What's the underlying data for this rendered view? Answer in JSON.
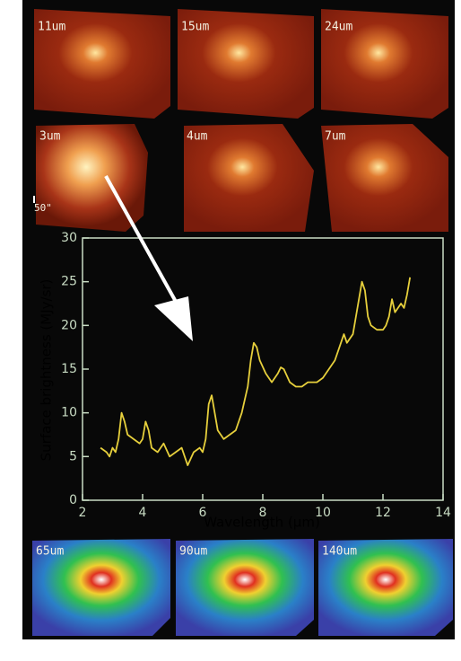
{
  "panels": {
    "top": [
      "11um",
      "15um",
      "24um",
      "3um",
      "4um",
      "7um"
    ],
    "bottom": [
      "65um",
      "90um",
      "140um"
    ],
    "scale_label": "50\""
  },
  "chart_data": {
    "type": "line",
    "y_label": "Surface brightness (MJy/sr)",
    "x_label": "Wavelength (μm)",
    "x": [
      2.6,
      2.8,
      2.9,
      3.0,
      3.1,
      3.2,
      3.3,
      3.4,
      3.5,
      3.7,
      3.9,
      4.0,
      4.1,
      4.2,
      4.3,
      4.5,
      4.7,
      4.9,
      5.1,
      5.3,
      5.5,
      5.7,
      5.9,
      6.0,
      6.1,
      6.2,
      6.3,
      6.4,
      6.5,
      6.7,
      6.9,
      7.1,
      7.3,
      7.5,
      7.6,
      7.7,
      7.8,
      7.9,
      8.1,
      8.3,
      8.5,
      8.6,
      8.7,
      8.9,
      9.1,
      9.3,
      9.5,
      9.8,
      10.0,
      10.2,
      10.4,
      10.6,
      10.7,
      10.8,
      11.0,
      11.1,
      11.2,
      11.3,
      11.4,
      11.5,
      11.6,
      11.8,
      12.0,
      12.1,
      12.2,
      12.3,
      12.4,
      12.5,
      12.6,
      12.7,
      12.8,
      12.9
    ],
    "values": [
      6,
      5.5,
      5,
      6,
      5.5,
      7,
      10,
      9,
      7.5,
      7,
      6.5,
      7,
      9,
      8,
      6,
      5.5,
      6.5,
      5,
      5.5,
      6,
      4,
      5.5,
      6,
      5.5,
      7,
      11,
      12,
      10,
      8,
      7,
      7.5,
      8,
      10,
      13,
      16,
      18,
      17.5,
      16,
      14.5,
      13.5,
      14.5,
      15.2,
      15,
      13.5,
      13,
      13,
      13.5,
      13.5,
      14,
      15,
      16,
      18,
      19,
      18,
      19,
      21,
      23,
      25,
      24,
      21,
      20,
      19.5,
      19.5,
      20,
      21,
      23,
      21.5,
      22,
      22.5,
      22,
      23.5,
      25.5
    ],
    "color": "#e6cf3c",
    "axis_color": "#c9dcc4",
    "xlim": [
      2,
      14
    ],
    "xticks": [
      2,
      4,
      6,
      8,
      10,
      12,
      14
    ],
    "ylim": [
      0,
      30
    ],
    "yticks": [
      0,
      5,
      10,
      15,
      20,
      25,
      30
    ],
    "grid": false
  }
}
